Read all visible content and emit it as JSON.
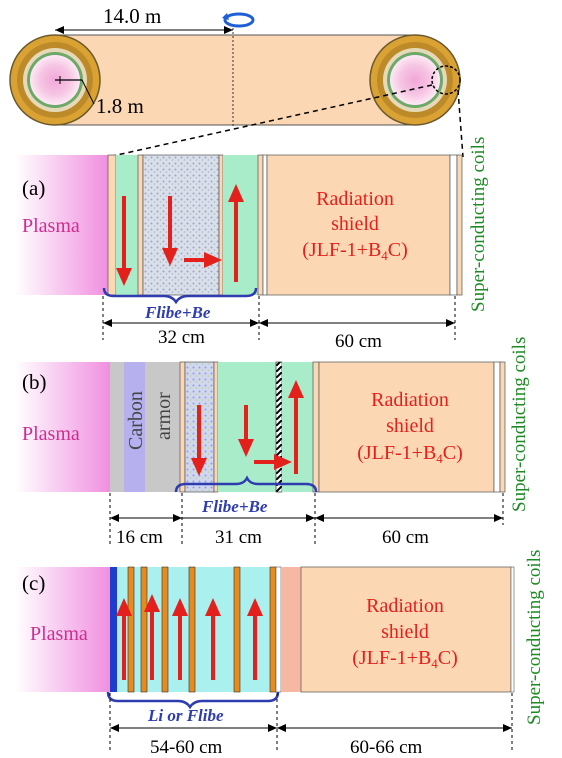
{
  "top": {
    "length_label": "14.0 m",
    "radius_label": "1.8 m"
  },
  "panel_a": {
    "label": "(a)",
    "plasma": "Plasma",
    "shield_line1": "Radiation",
    "shield_line2": "shield",
    "shield_line3_pre": "(JLF-1+B",
    "shield_line3_sub": "4",
    "shield_line3_post": "C)",
    "coils": "Super-conducting coils",
    "blanket": "Flibe+Be",
    "dim1": "32 cm",
    "dim2": "60 cm"
  },
  "panel_b": {
    "label": "(b)",
    "plasma": "Plasma",
    "carbon": "Carbon",
    "armor": "armor",
    "shield_line1": "Radiation",
    "shield_line2": "shield",
    "shield_line3_pre": "(JLF-1+B",
    "shield_line3_sub": "4",
    "shield_line3_post": "C)",
    "coils": "Super-conducting coils",
    "blanket": "Flibe+Be",
    "dim1": "16 cm",
    "dim2": "31 cm",
    "dim3": "60 cm"
  },
  "panel_c": {
    "label": "(c)",
    "plasma": "Plasma",
    "shield_line1": "Radiation",
    "shield_line2": "shield",
    "shield_line3_pre": "(JLF-1+B",
    "shield_line3_sub": "4",
    "shield_line3_post": "C)",
    "coils": "Super-conducting coils",
    "blanket": "Li or Flibe",
    "dim1": "54-60 cm",
    "dim2": "60-66 cm"
  },
  "colors": {
    "shield": "#fbd7b3",
    "flibe": "#a8ecca",
    "li": "#aaf0ee",
    "plasma_pink": "#f08fe0",
    "arrow": "#e4201c",
    "coil_text": "#1e8a24",
    "brace": "#2f3cb0",
    "carbon": "#c8c8c8",
    "armor_blue": "#b7b0ee"
  }
}
